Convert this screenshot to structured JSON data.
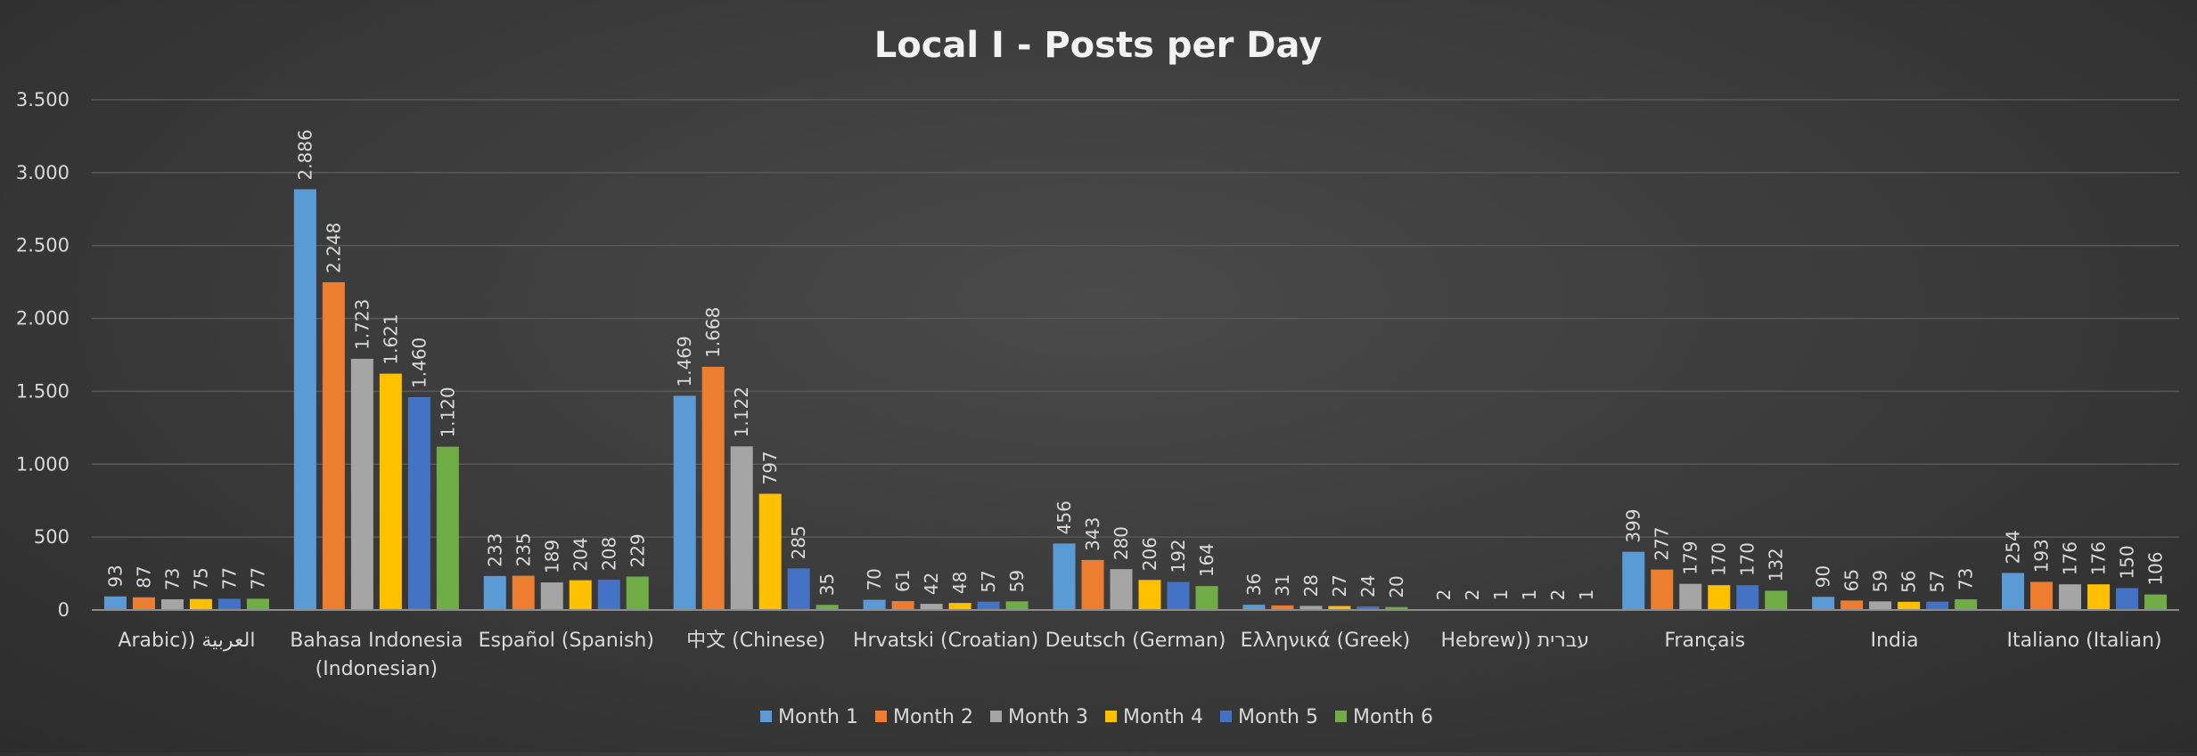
{
  "chart_data": {
    "type": "bar",
    "title": "Local I - Posts per Day",
    "xlabel": "",
    "ylabel": "",
    "ylim": [
      0,
      3500
    ],
    "yticks": [
      0,
      500,
      1000,
      1500,
      2000,
      2500,
      3000,
      3500
    ],
    "ytick_labels": [
      "0",
      "500",
      "1.000",
      "1.500",
      "2.000",
      "2.500",
      "3.000",
      "3.500"
    ],
    "grid": true,
    "legend_position": "bottom",
    "categories": [
      [
        "Arabic)) العربية"
      ],
      [
        "Bahasa Indonesia",
        "(Indonesian)"
      ],
      [
        "Español (Spanish)"
      ],
      [
        "中文 (Chinese)"
      ],
      [
        "Hrvatski (Croatian)"
      ],
      [
        "Deutsch (German)"
      ],
      [
        "Ελληνικά (Greek)"
      ],
      [
        "Hebrew)) עברית"
      ],
      [
        "Français"
      ],
      [
        "India"
      ],
      [
        "Italiano (Italian)"
      ]
    ],
    "series": [
      {
        "name": "Month 1",
        "color": "#5b9bd5",
        "values": [
          93,
          2886,
          233,
          1469,
          70,
          456,
          36,
          2,
          399,
          90,
          254
        ],
        "labels": [
          "93",
          "2.886",
          "233",
          "1.469",
          "70",
          "456",
          "36",
          "2",
          "399",
          "90",
          "254"
        ]
      },
      {
        "name": "Month 2",
        "color": "#ed7d31",
        "values": [
          87,
          2248,
          235,
          1668,
          61,
          343,
          31,
          2,
          277,
          65,
          193
        ],
        "labels": [
          "87",
          "2.248",
          "235",
          "1.668",
          "61",
          "343",
          "31",
          "2",
          "277",
          "65",
          "193"
        ]
      },
      {
        "name": "Month 3",
        "color": "#a5a5a5",
        "values": [
          73,
          1723,
          189,
          1122,
          42,
          280,
          28,
          1,
          179,
          59,
          176
        ],
        "labels": [
          "73",
          "1.723",
          "189",
          "1.122",
          "42",
          "280",
          "28",
          "1",
          "179",
          "59",
          "176"
        ]
      },
      {
        "name": "Month 4",
        "color": "#ffc000",
        "values": [
          75,
          1621,
          204,
          797,
          48,
          206,
          27,
          1,
          170,
          56,
          176
        ],
        "labels": [
          "75",
          "1.621",
          "204",
          "797",
          "48",
          "206",
          "27",
          "1",
          "170",
          "56",
          "176"
        ]
      },
      {
        "name": "Month 5",
        "color": "#4472c4",
        "values": [
          77,
          1460,
          208,
          285,
          57,
          192,
          24,
          2,
          170,
          57,
          150
        ],
        "labels": [
          "77",
          "1.460",
          "208",
          "285",
          "57",
          "192",
          "24",
          "2",
          "170",
          "57",
          "150"
        ]
      },
      {
        "name": "Month 6",
        "color": "#70ad47",
        "values": [
          77,
          1120,
          229,
          35,
          59,
          164,
          20,
          1,
          132,
          73,
          106
        ],
        "labels": [
          "77",
          "1.120",
          "229",
          "35",
          "59",
          "164",
          "20",
          "1",
          "132",
          "73",
          "106"
        ]
      }
    ]
  }
}
